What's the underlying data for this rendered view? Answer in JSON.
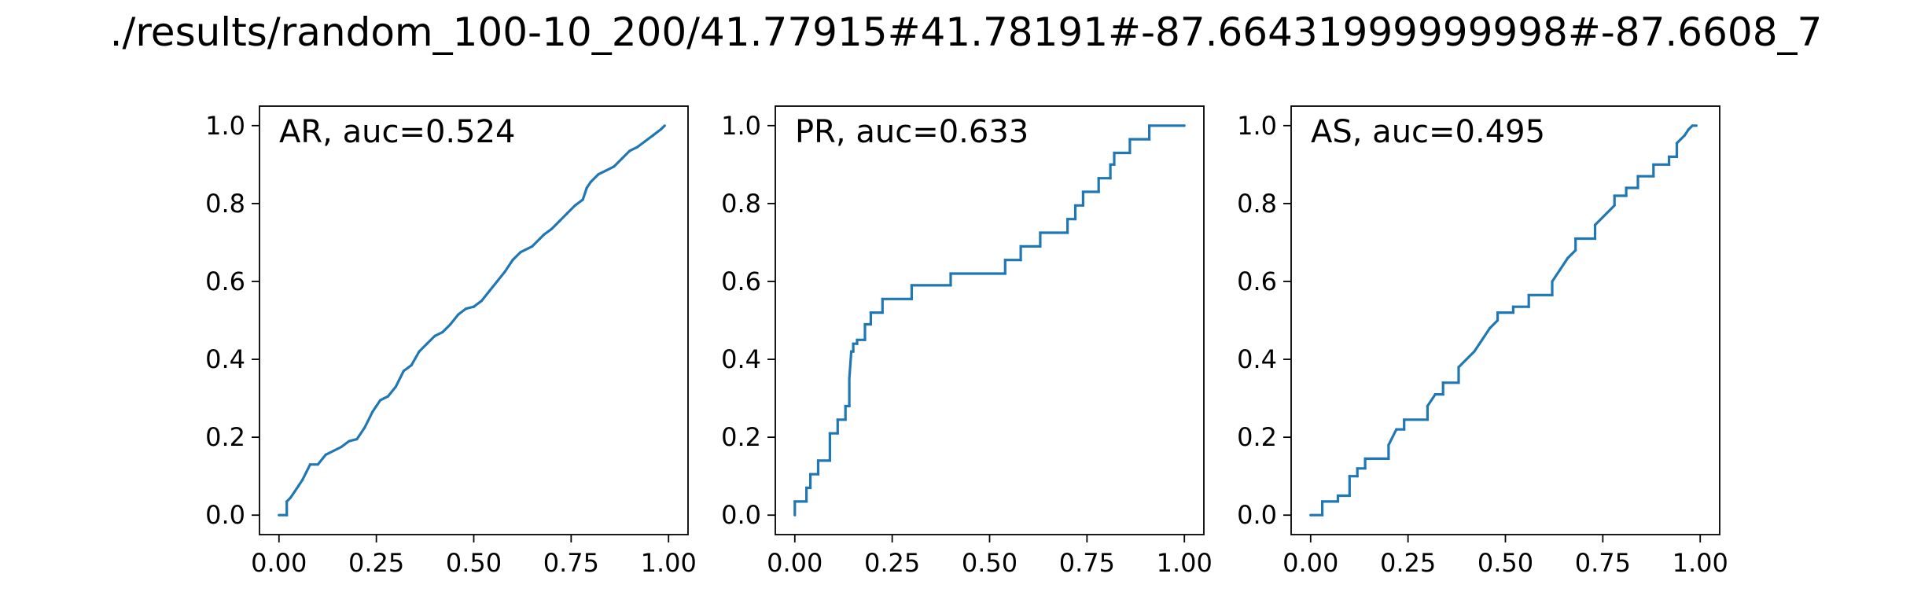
{
  "figure": {
    "title": "./results/random_100-10_200/41.77915#41.78191#-87.66431999999998#-87.6608_7"
  },
  "colors": {
    "line": "#1f77b4",
    "axes": "#000000"
  },
  "chart_data": [
    {
      "type": "line",
      "label": "AR, auc=0.524",
      "xlim": [
        -0.05,
        1.05
      ],
      "ylim": [
        -0.05,
        1.05
      ],
      "xticks": [
        "0.00",
        "0.25",
        "0.50",
        "0.75",
        "1.00"
      ],
      "yticks": [
        "0.0",
        "0.2",
        "0.4",
        "0.6",
        "0.8",
        "1.0"
      ],
      "grid": false,
      "series": [
        {
          "x": [
            0.0,
            0.02,
            0.02,
            0.03,
            0.04,
            0.05,
            0.06,
            0.07,
            0.08,
            0.09,
            0.1,
            0.12,
            0.14,
            0.16,
            0.18,
            0.2,
            0.22,
            0.24,
            0.25,
            0.26,
            0.27,
            0.28,
            0.3,
            0.32,
            0.34,
            0.36,
            0.38,
            0.4,
            0.42,
            0.44,
            0.46,
            0.48,
            0.5,
            0.52,
            0.54,
            0.56,
            0.58,
            0.6,
            0.62,
            0.63,
            0.65,
            0.67,
            0.68,
            0.7,
            0.72,
            0.74,
            0.76,
            0.78,
            0.79,
            0.8,
            0.82,
            0.84,
            0.86,
            0.88,
            0.9,
            0.92,
            0.94,
            0.96,
            0.98,
            0.99
          ],
          "y": [
            0.0,
            0.0,
            0.035,
            0.045,
            0.06,
            0.075,
            0.09,
            0.11,
            0.13,
            0.13,
            0.13,
            0.155,
            0.165,
            0.175,
            0.19,
            0.195,
            0.225,
            0.265,
            0.28,
            0.295,
            0.3,
            0.305,
            0.33,
            0.37,
            0.385,
            0.42,
            0.44,
            0.46,
            0.47,
            0.49,
            0.515,
            0.53,
            0.535,
            0.55,
            0.575,
            0.6,
            0.625,
            0.655,
            0.675,
            0.68,
            0.69,
            0.71,
            0.72,
            0.735,
            0.755,
            0.775,
            0.795,
            0.81,
            0.84,
            0.855,
            0.875,
            0.885,
            0.895,
            0.915,
            0.935,
            0.945,
            0.96,
            0.975,
            0.99,
            1.0
          ]
        }
      ]
    },
    {
      "type": "line",
      "label": "PR, auc=0.633",
      "xlim": [
        -0.05,
        1.05
      ],
      "ylim": [
        -0.05,
        1.05
      ],
      "xticks": [
        "0.00",
        "0.25",
        "0.50",
        "0.75",
        "1.00"
      ],
      "yticks": [
        "0.0",
        "0.2",
        "0.4",
        "0.6",
        "0.8",
        "1.0"
      ],
      "grid": false,
      "series": [
        {
          "x": [
            0.0,
            0.0,
            0.03,
            0.03,
            0.04,
            0.04,
            0.06,
            0.06,
            0.09,
            0.09,
            0.11,
            0.11,
            0.13,
            0.13,
            0.14,
            0.14,
            0.145,
            0.15,
            0.15,
            0.16,
            0.16,
            0.18,
            0.18,
            0.195,
            0.195,
            0.225,
            0.225,
            0.3,
            0.3,
            0.4,
            0.4,
            0.54,
            0.54,
            0.58,
            0.58,
            0.63,
            0.63,
            0.7,
            0.7,
            0.72,
            0.72,
            0.74,
            0.74,
            0.78,
            0.78,
            0.81,
            0.81,
            0.82,
            0.82,
            0.86,
            0.86,
            0.91,
            0.91,
            1.0
          ],
          "y": [
            0.0,
            0.035,
            0.035,
            0.07,
            0.07,
            0.105,
            0.105,
            0.14,
            0.14,
            0.21,
            0.21,
            0.245,
            0.245,
            0.28,
            0.28,
            0.35,
            0.42,
            0.42,
            0.44,
            0.44,
            0.45,
            0.45,
            0.49,
            0.49,
            0.52,
            0.52,
            0.555,
            0.555,
            0.59,
            0.59,
            0.62,
            0.62,
            0.655,
            0.655,
            0.69,
            0.69,
            0.725,
            0.725,
            0.76,
            0.76,
            0.795,
            0.795,
            0.83,
            0.83,
            0.865,
            0.865,
            0.9,
            0.9,
            0.93,
            0.93,
            0.965,
            0.965,
            1.0,
            1.0
          ]
        }
      ]
    },
    {
      "type": "line",
      "label": "AS, auc=0.495",
      "xlim": [
        -0.05,
        1.05
      ],
      "ylim": [
        -0.05,
        1.05
      ],
      "xticks": [
        "0.00",
        "0.25",
        "0.50",
        "0.75",
        "1.00"
      ],
      "yticks": [
        "0.0",
        "0.2",
        "0.4",
        "0.6",
        "0.8",
        "1.0"
      ],
      "grid": false,
      "series": [
        {
          "x": [
            0.0,
            0.03,
            0.03,
            0.07,
            0.07,
            0.1,
            0.1,
            0.12,
            0.12,
            0.14,
            0.14,
            0.2,
            0.2,
            0.22,
            0.24,
            0.24,
            0.3,
            0.3,
            0.32,
            0.34,
            0.34,
            0.38,
            0.38,
            0.4,
            0.42,
            0.44,
            0.46,
            0.48,
            0.48,
            0.52,
            0.52,
            0.56,
            0.56,
            0.62,
            0.62,
            0.64,
            0.66,
            0.68,
            0.68,
            0.73,
            0.73,
            0.76,
            0.78,
            0.78,
            0.81,
            0.81,
            0.84,
            0.84,
            0.88,
            0.88,
            0.92,
            0.92,
            0.94,
            0.94,
            0.96,
            0.97,
            0.98,
            0.99
          ],
          "y": [
            0.0,
            0.0,
            0.035,
            0.035,
            0.05,
            0.05,
            0.1,
            0.1,
            0.12,
            0.12,
            0.145,
            0.145,
            0.18,
            0.22,
            0.22,
            0.245,
            0.245,
            0.28,
            0.31,
            0.31,
            0.34,
            0.34,
            0.38,
            0.4,
            0.42,
            0.45,
            0.48,
            0.5,
            0.52,
            0.52,
            0.535,
            0.535,
            0.565,
            0.565,
            0.6,
            0.63,
            0.66,
            0.68,
            0.71,
            0.71,
            0.745,
            0.775,
            0.795,
            0.82,
            0.82,
            0.84,
            0.84,
            0.87,
            0.87,
            0.9,
            0.9,
            0.92,
            0.92,
            0.955,
            0.975,
            0.99,
            1.0,
            1.0
          ]
        }
      ]
    }
  ]
}
